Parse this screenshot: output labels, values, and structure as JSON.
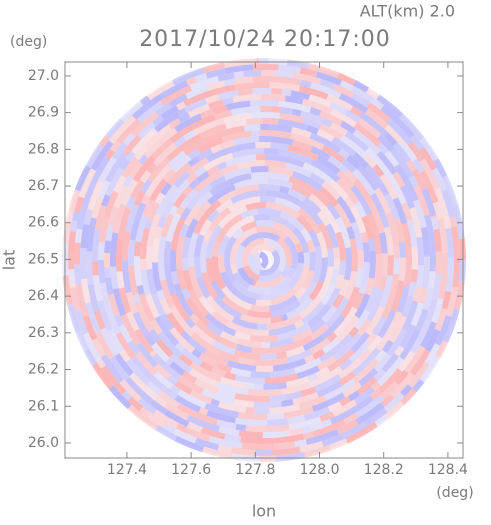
{
  "chart_data": {
    "type": "image",
    "title": "2017/10/24 20:17:00",
    "subtitle": "ALT(km) 2.0",
    "x_label": "lon",
    "y_label": "lat",
    "x_unit": "(deg)",
    "y_unit": "(deg)",
    "xlim": [
      127.207,
      128.447
    ],
    "ylim": [
      25.959,
      27.038
    ],
    "xticks": [
      127.4,
      127.6,
      127.8,
      {
        "value": 128,
        "label": "128.0"
      },
      128.2,
      128.4
    ],
    "yticks": [
      {
        "value": 26,
        "label": "26.0"
      },
      26.1,
      26.2,
      26.3,
      26.4,
      26.5,
      26.6,
      26.7,
      26.8,
      26.9,
      {
        "value": 27,
        "label": "27.0"
      }
    ]
  }
}
